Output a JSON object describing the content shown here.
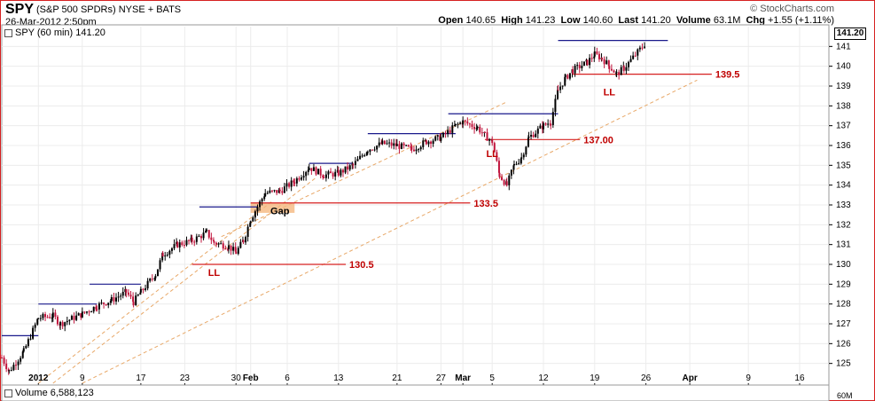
{
  "header": {
    "symbol": "SPY",
    "description": "(S&P 500 SPDRs) NYSE + BATS",
    "date": "26-Mar-2012 2:50pm",
    "brand": "© StockCharts.com",
    "open_label": "Open",
    "open": "140.65",
    "high_label": "High",
    "high": "141.23",
    "low_label": "Low",
    "low": "140.60",
    "last_label": "Last",
    "last": "141.20",
    "volume_label": "Volume",
    "volume": "63.1M",
    "chg_label": "Chg",
    "chg": "+1.55 (+1.11%)"
  },
  "legend": {
    "price": "SPY (60 min) 141.20",
    "volume": "Volume 6,588,123"
  },
  "last_box": "141.20",
  "colors": {
    "frame": "#d62020",
    "up": "#000000",
    "down": "#c0143c",
    "resistance": "#1a1a8c",
    "support": "#d62020",
    "trendline": "#e8a868",
    "gap_fill": "#f5b880",
    "annotation": "#c00000"
  },
  "chart_data": {
    "type": "candlestick",
    "title": "SPY",
    "interval": "60 min",
    "ylim": [
      124,
      142
    ],
    "y_ticks": [
      125,
      126,
      127,
      128,
      129,
      130,
      131,
      132,
      133,
      134,
      135,
      136,
      137,
      138,
      139,
      140,
      141
    ],
    "x_tick_labels": [
      "2012",
      "9",
      "17",
      "23",
      "30",
      "Feb",
      "6",
      "13",
      "21",
      "27",
      "Mar",
      "5",
      "12",
      "19",
      "26",
      "Apr",
      "9",
      "16"
    ],
    "x_tick_dates": [
      "2012-01-03",
      "2012-01-09",
      "2012-01-17",
      "2012-01-23",
      "2012-01-30",
      "2012-02-01",
      "2012-02-06",
      "2012-02-13",
      "2012-02-21",
      "2012-02-27",
      "2012-03-01",
      "2012-03-05",
      "2012-03-12",
      "2012-03-19",
      "2012-03-26",
      "2012-04-01",
      "2012-04-09",
      "2012-04-16"
    ],
    "price_path": [
      [
        "2011-12-29",
        125.3
      ],
      [
        "2011-12-30",
        124.6
      ],
      [
        "2012-01-01",
        125.6
      ],
      [
        "2012-01-03",
        127.3
      ],
      [
        "2012-01-05",
        127.4
      ],
      [
        "2012-01-06",
        127.0
      ],
      [
        "2012-01-09",
        127.5
      ],
      [
        "2012-01-11",
        127.9
      ],
      [
        "2012-01-13",
        128.2
      ],
      [
        "2012-01-15",
        128.6
      ],
      [
        "2012-01-16",
        128.1
      ],
      [
        "2012-01-17",
        128.6
      ],
      [
        "2012-01-19",
        129.5
      ],
      [
        "2012-01-20",
        130.5
      ],
      [
        "2012-01-22",
        131.0
      ],
      [
        "2012-01-24",
        131.2
      ],
      [
        "2012-01-26",
        131.6
      ],
      [
        "2012-01-27",
        131.1
      ],
      [
        "2012-01-29",
        130.9
      ],
      [
        "2012-01-30",
        130.6
      ],
      [
        "2012-01-31",
        131.2
      ],
      [
        "2012-02-01",
        132.3
      ],
      [
        "2012-02-03",
        133.6
      ],
      [
        "2012-02-05",
        133.7
      ],
      [
        "2012-02-07",
        134.2
      ],
      [
        "2012-02-09",
        134.9
      ],
      [
        "2012-02-11",
        134.5
      ],
      [
        "2012-02-13",
        134.6
      ],
      [
        "2012-02-15",
        135.0
      ],
      [
        "2012-02-17",
        135.8
      ],
      [
        "2012-02-19",
        136.1
      ],
      [
        "2012-02-21",
        136.0
      ],
      [
        "2012-02-23",
        135.8
      ],
      [
        "2012-02-25",
        136.2
      ],
      [
        "2012-02-27",
        136.4
      ],
      [
        "2012-02-29",
        137.0
      ],
      [
        "2012-03-01",
        137.2
      ],
      [
        "2012-03-03",
        136.9
      ],
      [
        "2012-03-04",
        136.5
      ],
      [
        "2012-03-05",
        136.2
      ],
      [
        "2012-03-06",
        134.5
      ],
      [
        "2012-03-07",
        134.0
      ],
      [
        "2012-03-08",
        135.0
      ],
      [
        "2012-03-09",
        135.4
      ],
      [
        "2012-03-10",
        136.4
      ],
      [
        "2012-03-12",
        137.0
      ],
      [
        "2012-03-13",
        137.2
      ],
      [
        "2012-03-14",
        138.8
      ],
      [
        "2012-03-15",
        139.4
      ],
      [
        "2012-03-16",
        139.8
      ],
      [
        "2012-03-18",
        140.2
      ],
      [
        "2012-03-19",
        140.6
      ],
      [
        "2012-03-20",
        140.4
      ],
      [
        "2012-03-21",
        140.0
      ],
      [
        "2012-03-22",
        139.6
      ],
      [
        "2012-03-23",
        139.9
      ],
      [
        "2012-03-26",
        141.2
      ]
    ],
    "resistance_lines": [
      {
        "from": "2011-12-29",
        "to": "2012-01-03",
        "y": 126.4
      },
      {
        "from": "2012-01-03",
        "to": "2012-01-11",
        "y": 128.0
      },
      {
        "from": "2012-01-10",
        "to": "2012-01-17",
        "y": 129.0
      },
      {
        "from": "2012-01-25",
        "to": "2012-02-02",
        "y": 132.9
      },
      {
        "from": "2012-02-09",
        "to": "2012-02-15",
        "y": 135.1
      },
      {
        "from": "2012-02-17",
        "to": "2012-02-29",
        "y": 136.6
      },
      {
        "from": "2012-02-28",
        "to": "2012-03-14",
        "y": 137.6
      },
      {
        "from": "2012-03-14",
        "to": "2012-03-29",
        "y": 141.3
      }
    ],
    "support_lines": [
      {
        "from": "2012-01-24",
        "to": "2012-02-14",
        "y": 130.0,
        "label": "130.5"
      },
      {
        "from": "2012-02-01",
        "to": "2012-03-02",
        "y": 133.1,
        "label": "133.5"
      },
      {
        "from": "2012-03-04",
        "to": "2012-03-17",
        "y": 136.3,
        "label": "137.00"
      },
      {
        "from": "2012-03-16",
        "to": "2012-04-04",
        "y": 139.6,
        "label": "139.5"
      }
    ],
    "trendlines": [
      {
        "from": [
          "2012-01-03",
          124.0
        ],
        "to": [
          "2012-02-04",
          133.2
        ]
      },
      {
        "from": [
          "2012-01-05",
          124.0
        ],
        "to": [
          "2012-02-10",
          134.4
        ]
      },
      {
        "from": [
          "2012-01-09",
          124.0
        ],
        "to": [
          "2012-04-02",
          139.3
        ]
      },
      {
        "from": [
          "2012-01-28",
          131.4
        ],
        "to": [
          "2012-03-07",
          138.2
        ]
      }
    ],
    "annotations": [
      {
        "text": "LL",
        "x": "2012-01-27",
        "y": 129.6
      },
      {
        "text": "Gap",
        "x": "2012-02-05",
        "y": 132.7
      },
      {
        "text": "LL",
        "x": "2012-03-05",
        "y": 135.6
      },
      {
        "text": "LL",
        "x": "2012-03-21",
        "y": 138.7
      }
    ],
    "gap": {
      "from": "2012-02-01",
      "to": "2012-02-07",
      "y_low": 132.6,
      "y_high": 133.1
    },
    "volume_axis_label": "60M"
  }
}
